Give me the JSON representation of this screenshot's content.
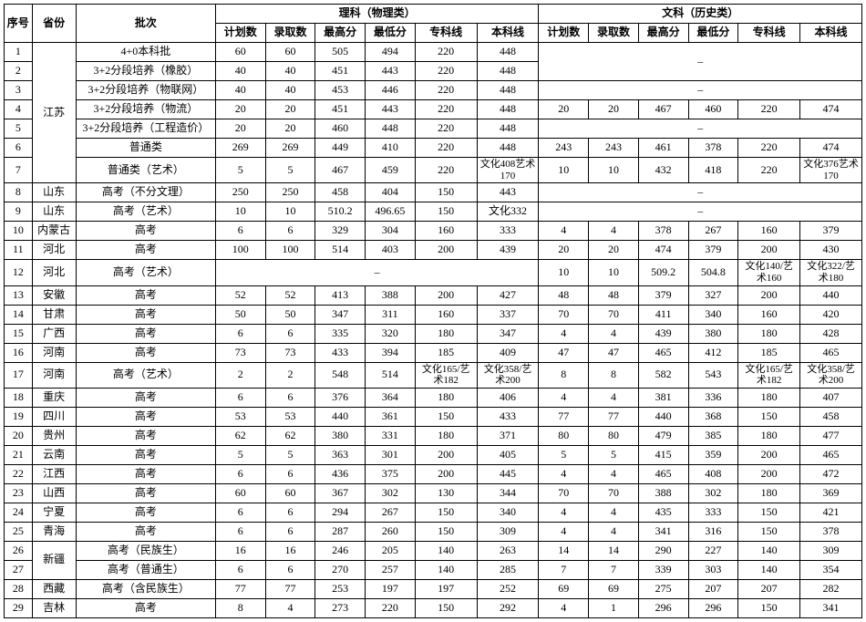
{
  "headers": {
    "idx": "序号",
    "prov": "省份",
    "batch": "批次",
    "sci_group": "理科（物理类）",
    "lib_group": "文科（历史类）",
    "plan": "计划数",
    "admit": "录取数",
    "max": "最高分",
    "min": "最低分",
    "spec": "专科线",
    "bach": "本科线"
  },
  "prov_groups": [
    {
      "label": "江苏",
      "rows": 7
    },
    {
      "label": "山东",
      "rows": 1
    },
    {
      "label": "山东",
      "rows": 1
    },
    {
      "label": "内蒙古",
      "rows": 1
    },
    {
      "label": "河北",
      "rows": 1
    },
    {
      "label": "河北",
      "rows": 1
    },
    {
      "label": "安徽",
      "rows": 1
    },
    {
      "label": "甘肃",
      "rows": 1
    },
    {
      "label": "广西",
      "rows": 1
    },
    {
      "label": "河南",
      "rows": 1
    },
    {
      "label": "河南",
      "rows": 1
    },
    {
      "label": "重庆",
      "rows": 1
    },
    {
      "label": "四川",
      "rows": 1
    },
    {
      "label": "贵州",
      "rows": 1
    },
    {
      "label": "云南",
      "rows": 1
    },
    {
      "label": "江西",
      "rows": 1
    },
    {
      "label": "山西",
      "rows": 1
    },
    {
      "label": "宁夏",
      "rows": 1
    },
    {
      "label": "青海",
      "rows": 1
    },
    {
      "label": "新疆",
      "rows": 2
    },
    {
      "label": "西藏",
      "rows": 1
    },
    {
      "label": "吉林",
      "rows": 1
    }
  ],
  "rows": [
    {
      "idx": "1",
      "batch": "4+0本科批",
      "sci": [
        "60",
        "60",
        "505",
        "494",
        "220",
        "448"
      ],
      "lib": null,
      "lib_span": 2
    },
    {
      "idx": "2",
      "batch": "3+2分段培养（橡胶）",
      "sci": [
        "40",
        "40",
        "451",
        "443",
        "220",
        "448"
      ],
      "lib": "cont"
    },
    {
      "idx": "3",
      "batch": "3+2分段培养（物联网）",
      "sci": [
        "40",
        "40",
        "453",
        "446",
        "220",
        "448"
      ],
      "lib": null,
      "lib_span": 1
    },
    {
      "idx": "4",
      "batch": "3+2分段培养（物流）",
      "sci": [
        "20",
        "20",
        "451",
        "443",
        "220",
        "448"
      ],
      "lib": [
        "20",
        "20",
        "467",
        "460",
        "220",
        "474"
      ]
    },
    {
      "idx": "5",
      "batch": "3+2分段培养（工程造价）",
      "sci": [
        "20",
        "20",
        "460",
        "448",
        "220",
        "448"
      ],
      "lib": null,
      "lib_span": 1
    },
    {
      "idx": "6",
      "batch": "普通类",
      "sci": [
        "269",
        "269",
        "449",
        "410",
        "220",
        "448"
      ],
      "lib": [
        "243",
        "243",
        "461",
        "378",
        "220",
        "474"
      ]
    },
    {
      "idx": "7",
      "batch": "普通类（艺术）",
      "sci": [
        "5",
        "5",
        "467",
        "459",
        "220",
        "文化408艺术170"
      ],
      "lib": [
        "10",
        "10",
        "432",
        "418",
        "220",
        "文化376艺术170"
      ]
    },
    {
      "idx": "8",
      "batch": "高考（不分文理）",
      "sci": [
        "250",
        "250",
        "458",
        "404",
        "150",
        "443"
      ],
      "lib": null,
      "lib_span": 1
    },
    {
      "idx": "9",
      "batch": "高考（艺术）",
      "sci": [
        "10",
        "10",
        "510.2",
        "496.65",
        "150",
        "文化332"
      ],
      "lib": null,
      "lib_span": 1
    },
    {
      "idx": "10",
      "batch": "高考",
      "sci": [
        "6",
        "6",
        "329",
        "304",
        "160",
        "333"
      ],
      "lib": [
        "4",
        "4",
        "378",
        "267",
        "160",
        "379"
      ]
    },
    {
      "idx": "11",
      "batch": "高考",
      "sci": [
        "100",
        "100",
        "514",
        "403",
        "200",
        "439"
      ],
      "lib": [
        "20",
        "20",
        "474",
        "379",
        "200",
        "430"
      ]
    },
    {
      "idx": "12",
      "batch": "高考（艺术）",
      "sci": null,
      "lib": [
        "10",
        "10",
        "509.2",
        "504.8",
        "文化140/艺术160",
        "文化322/艺术180"
      ]
    },
    {
      "idx": "13",
      "batch": "高考",
      "sci": [
        "52",
        "52",
        "413",
        "388",
        "200",
        "427"
      ],
      "lib": [
        "48",
        "48",
        "379",
        "327",
        "200",
        "440"
      ]
    },
    {
      "idx": "14",
      "batch": "高考",
      "sci": [
        "50",
        "50",
        "347",
        "311",
        "160",
        "337"
      ],
      "lib": [
        "70",
        "70",
        "411",
        "340",
        "160",
        "420"
      ]
    },
    {
      "idx": "15",
      "batch": "高考",
      "sci": [
        "6",
        "6",
        "335",
        "320",
        "180",
        "347"
      ],
      "lib": [
        "4",
        "4",
        "439",
        "380",
        "180",
        "428"
      ]
    },
    {
      "idx": "16",
      "batch": "高考",
      "sci": [
        "73",
        "73",
        "433",
        "394",
        "185",
        "409"
      ],
      "lib": [
        "47",
        "47",
        "465",
        "412",
        "185",
        "465"
      ]
    },
    {
      "idx": "17",
      "batch": "高考（艺术）",
      "sci": [
        "2",
        "2",
        "548",
        "514",
        "文化165/艺术182",
        "文化358/艺术200"
      ],
      "lib": [
        "8",
        "8",
        "582",
        "543",
        "文化165/艺术182",
        "文化358/艺术200"
      ]
    },
    {
      "idx": "18",
      "batch": "高考",
      "sci": [
        "6",
        "6",
        "376",
        "364",
        "180",
        "406"
      ],
      "lib": [
        "4",
        "4",
        "381",
        "336",
        "180",
        "407"
      ]
    },
    {
      "idx": "19",
      "batch": "高考",
      "sci": [
        "53",
        "53",
        "440",
        "361",
        "150",
        "433"
      ],
      "lib": [
        "77",
        "77",
        "440",
        "368",
        "150",
        "458"
      ]
    },
    {
      "idx": "20",
      "batch": "高考",
      "sci": [
        "62",
        "62",
        "380",
        "331",
        "180",
        "371"
      ],
      "lib": [
        "80",
        "80",
        "479",
        "385",
        "180",
        "477"
      ]
    },
    {
      "idx": "21",
      "batch": "高考",
      "sci": [
        "5",
        "5",
        "363",
        "301",
        "200",
        "405"
      ],
      "lib": [
        "5",
        "5",
        "415",
        "359",
        "200",
        "465"
      ]
    },
    {
      "idx": "22",
      "batch": "高考",
      "sci": [
        "6",
        "6",
        "436",
        "375",
        "200",
        "445"
      ],
      "lib": [
        "4",
        "4",
        "465",
        "408",
        "200",
        "472"
      ]
    },
    {
      "idx": "23",
      "batch": "高考",
      "sci": [
        "60",
        "60",
        "367",
        "302",
        "130",
        "344"
      ],
      "lib": [
        "70",
        "70",
        "388",
        "302",
        "180",
        "369"
      ]
    },
    {
      "idx": "24",
      "batch": "高考",
      "sci": [
        "6",
        "6",
        "294",
        "267",
        "150",
        "340"
      ],
      "lib": [
        "4",
        "4",
        "435",
        "333",
        "150",
        "421"
      ]
    },
    {
      "idx": "25",
      "batch": "高考",
      "sci": [
        "6",
        "6",
        "287",
        "260",
        "150",
        "309"
      ],
      "lib": [
        "4",
        "4",
        "341",
        "316",
        "150",
        "378"
      ]
    },
    {
      "idx": "26",
      "batch": "高考（民族生）",
      "sci": [
        "16",
        "16",
        "246",
        "205",
        "140",
        "263"
      ],
      "lib": [
        "14",
        "14",
        "290",
        "227",
        "140",
        "309"
      ]
    },
    {
      "idx": "27",
      "batch": "高考（普通生）",
      "sci": [
        "6",
        "6",
        "270",
        "257",
        "140",
        "285"
      ],
      "lib": [
        "7",
        "7",
        "339",
        "303",
        "140",
        "354"
      ]
    },
    {
      "idx": "28",
      "batch": "高考（含民族生）",
      "sci": [
        "77",
        "77",
        "253",
        "197",
        "197",
        "252"
      ],
      "lib": [
        "69",
        "69",
        "275",
        "207",
        "207",
        "282"
      ]
    },
    {
      "idx": "29",
      "batch": "高考",
      "sci": [
        "8",
        "4",
        "273",
        "220",
        "150",
        "292"
      ],
      "lib": [
        "4",
        "1",
        "296",
        "296",
        "150",
        "341"
      ]
    }
  ],
  "dash": "–"
}
